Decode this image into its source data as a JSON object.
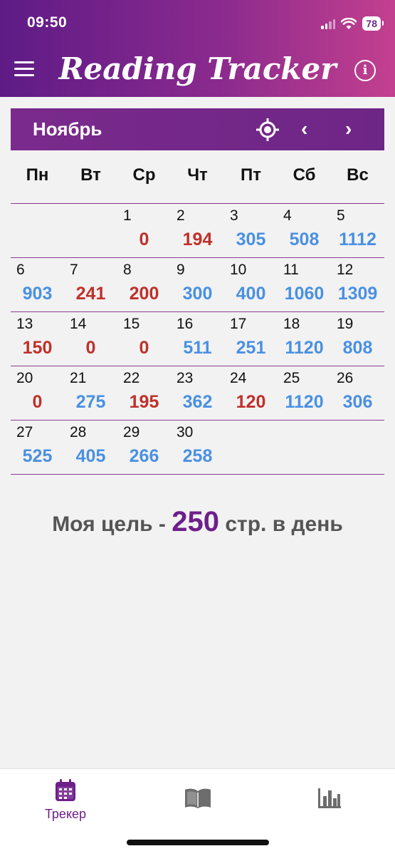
{
  "status_bar": {
    "time": "09:50",
    "battery": "78"
  },
  "header": {
    "title": "Reading Tracker",
    "menu_icon": "hamburger-menu-icon",
    "info_icon": "info-icon",
    "info_glyph": "i"
  },
  "month_bar": {
    "month": "Ноябрь",
    "prev_glyph": "‹",
    "next_glyph": "›"
  },
  "weekdays": [
    "Пн",
    "Вт",
    "Ср",
    "Чт",
    "Пт",
    "Сб",
    "Вс"
  ],
  "goal": {
    "prefix": "Моя цель -",
    "value": "250",
    "suffix": "стр. в день"
  },
  "colors": {
    "over_goal": "#4a90e2",
    "under_goal": "#c0302a",
    "accent": "#6e1f8a"
  },
  "calendar": [
    [
      null,
      null,
      {
        "day": "1",
        "pages": "0",
        "status": "under"
      },
      {
        "day": "2",
        "pages": "194",
        "status": "under"
      },
      {
        "day": "3",
        "pages": "305",
        "status": "over"
      },
      {
        "day": "4",
        "pages": "508",
        "status": "over"
      },
      {
        "day": "5",
        "pages": "1112",
        "status": "over"
      }
    ],
    [
      {
        "day": "6",
        "pages": "903",
        "status": "over"
      },
      {
        "day": "7",
        "pages": "241",
        "status": "under"
      },
      {
        "day": "8",
        "pages": "200",
        "status": "under"
      },
      {
        "day": "9",
        "pages": "300",
        "status": "over"
      },
      {
        "day": "10",
        "pages": "400",
        "status": "over"
      },
      {
        "day": "11",
        "pages": "1060",
        "status": "over"
      },
      {
        "day": "12",
        "pages": "1309",
        "status": "over"
      }
    ],
    [
      {
        "day": "13",
        "pages": "150",
        "status": "under"
      },
      {
        "day": "14",
        "pages": "0",
        "status": "under"
      },
      {
        "day": "15",
        "pages": "0",
        "status": "under"
      },
      {
        "day": "16",
        "pages": "511",
        "status": "over"
      },
      {
        "day": "17",
        "pages": "251",
        "status": "over"
      },
      {
        "day": "18",
        "pages": "1120",
        "status": "over"
      },
      {
        "day": "19",
        "pages": "808",
        "status": "over"
      }
    ],
    [
      {
        "day": "20",
        "pages": "0",
        "status": "under"
      },
      {
        "day": "21",
        "pages": "275",
        "status": "over"
      },
      {
        "day": "22",
        "pages": "195",
        "status": "under"
      },
      {
        "day": "23",
        "pages": "362",
        "status": "over"
      },
      {
        "day": "24",
        "pages": "120",
        "status": "under"
      },
      {
        "day": "25",
        "pages": "1120",
        "status": "over"
      },
      {
        "day": "26",
        "pages": "306",
        "status": "over"
      }
    ],
    [
      {
        "day": "27",
        "pages": "525",
        "status": "over"
      },
      {
        "day": "28",
        "pages": "405",
        "status": "over"
      },
      {
        "day": "29",
        "pages": "266",
        "status": "over"
      },
      {
        "day": "30",
        "pages": "258",
        "status": "over"
      },
      null,
      null,
      null
    ]
  ],
  "tabbar": {
    "tracker": {
      "label": "Трекер",
      "icon": "calendar-icon"
    },
    "books": {
      "icon": "book-icon"
    },
    "stats": {
      "icon": "bar-chart-icon"
    }
  }
}
